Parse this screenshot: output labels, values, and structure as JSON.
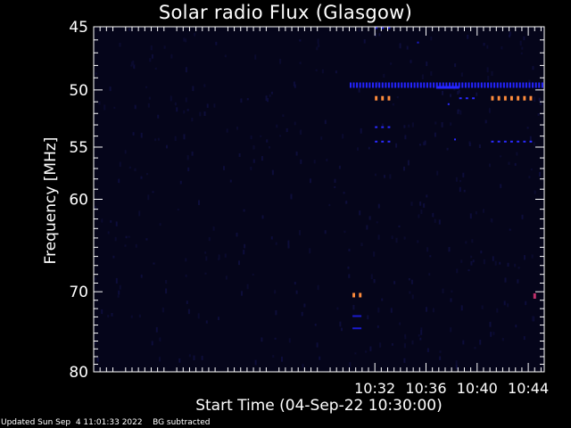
{
  "chart_data": {
    "type": "heatmap",
    "title": "Solar radio Flux (Glasgow)",
    "xlabel": "Start Time (04-Sep-22 10:30:00)",
    "ylabel": "Frequency [MHz]",
    "x_range_minutes": [
      10.0,
      45.25
    ],
    "y_range_mhz": [
      45,
      80
    ],
    "y_scale": "log",
    "x_ticks": [
      {
        "minute": 32,
        "label": "10:32"
      },
      {
        "minute": 36,
        "label": "10:36"
      },
      {
        "minute": 40,
        "label": "10:40"
      },
      {
        "minute": 44,
        "label": "10:44"
      }
    ],
    "y_ticks": [
      {
        "value": 45,
        "label": "45"
      },
      {
        "value": 50,
        "label": "50"
      },
      {
        "value": 55,
        "label": "55"
      },
      {
        "value": 60,
        "label": "60"
      },
      {
        "value": 70,
        "label": "70"
      },
      {
        "value": 80,
        "label": "80"
      }
    ],
    "y_minor_ticks": [
      46,
      47,
      48,
      49,
      51,
      52,
      53,
      54,
      56,
      57,
      58,
      59,
      61,
      62,
      63,
      64,
      65,
      66,
      67,
      68,
      69,
      71,
      72,
      73,
      74,
      75,
      76,
      77,
      78,
      79
    ],
    "bursts": [
      {
        "minute_start": 30.25,
        "minute_end": 30.45,
        "freq": 70.4,
        "level": "high",
        "color": "#ff8c3c"
      },
      {
        "minute_start": 30.75,
        "minute_end": 30.95,
        "freq": 70.4,
        "level": "high",
        "color": "#ff8c3c"
      },
      {
        "minute_start": 32.0,
        "minute_end": 32.2,
        "freq": 50.7,
        "level": "high",
        "color": "#ff8c3c"
      },
      {
        "minute_start": 32.5,
        "minute_end": 32.7,
        "freq": 50.7,
        "level": "high",
        "color": "#ff8c3c"
      },
      {
        "minute_start": 33.0,
        "minute_end": 33.2,
        "freq": 50.7,
        "level": "high",
        "color": "#ff8c3c"
      },
      {
        "minute_start": 41.1,
        "minute_end": 41.3,
        "freq": 50.7,
        "level": "high",
        "color": "#ff8c3c"
      },
      {
        "minute_start": 41.6,
        "minute_end": 41.8,
        "freq": 50.7,
        "level": "high",
        "color": "#ff8c3c"
      },
      {
        "minute_start": 42.1,
        "minute_end": 42.3,
        "freq": 50.7,
        "level": "high",
        "color": "#ff8c3c"
      },
      {
        "minute_start": 42.6,
        "minute_end": 42.8,
        "freq": 50.7,
        "level": "high",
        "color": "#ff8c3c"
      },
      {
        "minute_start": 43.1,
        "minute_end": 43.3,
        "freq": 50.7,
        "level": "high",
        "color": "#ff8c3c"
      },
      {
        "minute_start": 43.6,
        "minute_end": 43.8,
        "freq": 50.7,
        "level": "high",
        "color": "#ff8c3c"
      },
      {
        "minute_start": 44.1,
        "minute_end": 44.3,
        "freq": 50.7,
        "level": "high",
        "color": "#ff8c3c"
      },
      {
        "minute_start": 44.4,
        "minute_end": 44.55,
        "freq": 70.5,
        "level": "medium",
        "color": "#c0306a"
      },
      {
        "minute_start": 32.0,
        "minute_end": 32.2,
        "freq": 53.2,
        "level": "low",
        "color": "#2a2aff"
      },
      {
        "minute_start": 32.5,
        "minute_end": 32.7,
        "freq": 53.2,
        "level": "low",
        "color": "#2a2aff"
      },
      {
        "minute_start": 33.0,
        "minute_end": 33.2,
        "freq": 53.2,
        "level": "low",
        "color": "#2a2aff"
      },
      {
        "minute_start": 32.0,
        "minute_end": 32.2,
        "freq": 54.5,
        "level": "low",
        "color": "#2a2aff"
      },
      {
        "minute_start": 32.5,
        "minute_end": 32.7,
        "freq": 54.5,
        "level": "low",
        "color": "#2a2aff"
      },
      {
        "minute_start": 33.0,
        "minute_end": 33.2,
        "freq": 54.5,
        "level": "low",
        "color": "#2a2aff"
      },
      {
        "minute_start": 41.1,
        "minute_end": 41.3,
        "freq": 54.5,
        "level": "low",
        "color": "#2a2aff"
      },
      {
        "minute_start": 41.6,
        "minute_end": 41.8,
        "freq": 54.5,
        "level": "low",
        "color": "#2a2aff"
      },
      {
        "minute_start": 42.1,
        "minute_end": 42.3,
        "freq": 54.5,
        "level": "low",
        "color": "#2a2aff"
      },
      {
        "minute_start": 42.6,
        "minute_end": 42.8,
        "freq": 54.5,
        "level": "low",
        "color": "#2a2aff"
      },
      {
        "minute_start": 43.1,
        "minute_end": 43.3,
        "freq": 54.5,
        "level": "low",
        "color": "#2a2aff"
      },
      {
        "minute_start": 43.6,
        "minute_end": 43.8,
        "freq": 54.5,
        "level": "low",
        "color": "#2a2aff"
      },
      {
        "minute_start": 44.1,
        "minute_end": 44.3,
        "freq": 54.5,
        "level": "low",
        "color": "#2a2aff"
      },
      {
        "minute_start": 38.6,
        "minute_end": 38.8,
        "freq": 50.7,
        "level": "low",
        "color": "#2a2aff"
      },
      {
        "minute_start": 39.1,
        "minute_end": 39.3,
        "freq": 50.7,
        "level": "low",
        "color": "#2a2aff"
      },
      {
        "minute_start": 39.6,
        "minute_end": 39.8,
        "freq": 50.7,
        "level": "low",
        "color": "#2a2aff"
      },
      {
        "minute_start": 37.7,
        "minute_end": 37.8,
        "freq": 51.2,
        "level": "low",
        "color": "#2a2aff"
      },
      {
        "minute_start": 38.2,
        "minute_end": 38.3,
        "freq": 54.3,
        "level": "low",
        "color": "#2a2aff"
      },
      {
        "minute_start": 30.25,
        "minute_end": 30.95,
        "freq": 72.9,
        "level": "low",
        "color": "#1a1acc"
      },
      {
        "minute_start": 30.25,
        "minute_end": 30.95,
        "freq": 74.4,
        "level": "low",
        "color": "#1a1acc"
      },
      {
        "minute_start": 32.0,
        "minute_end": 32.2,
        "freq": 45.1,
        "level": "low",
        "color": "#1a1acc"
      },
      {
        "minute_start": 32.5,
        "minute_end": 32.7,
        "freq": 45.1,
        "level": "low",
        "color": "#1a1acc"
      },
      {
        "minute_start": 33.0,
        "minute_end": 33.2,
        "freq": 45.1,
        "level": "low",
        "color": "#1a1acc"
      },
      {
        "minute_start": 35.3,
        "minute_end": 35.4,
        "freq": 46.2,
        "level": "low",
        "color": "#1a1acc"
      }
    ],
    "band_line": {
      "freq": 49.6,
      "minute_start": 30.0,
      "minute_end": 45.25,
      "color": "#2424ff"
    },
    "band_line_dense_segment": {
      "minute_start": 36.8,
      "minute_end": 38.6
    }
  },
  "footer": {
    "updated": "Updated Sun Sep  4 11:01:33 2022",
    "note": "BG subtracted"
  }
}
